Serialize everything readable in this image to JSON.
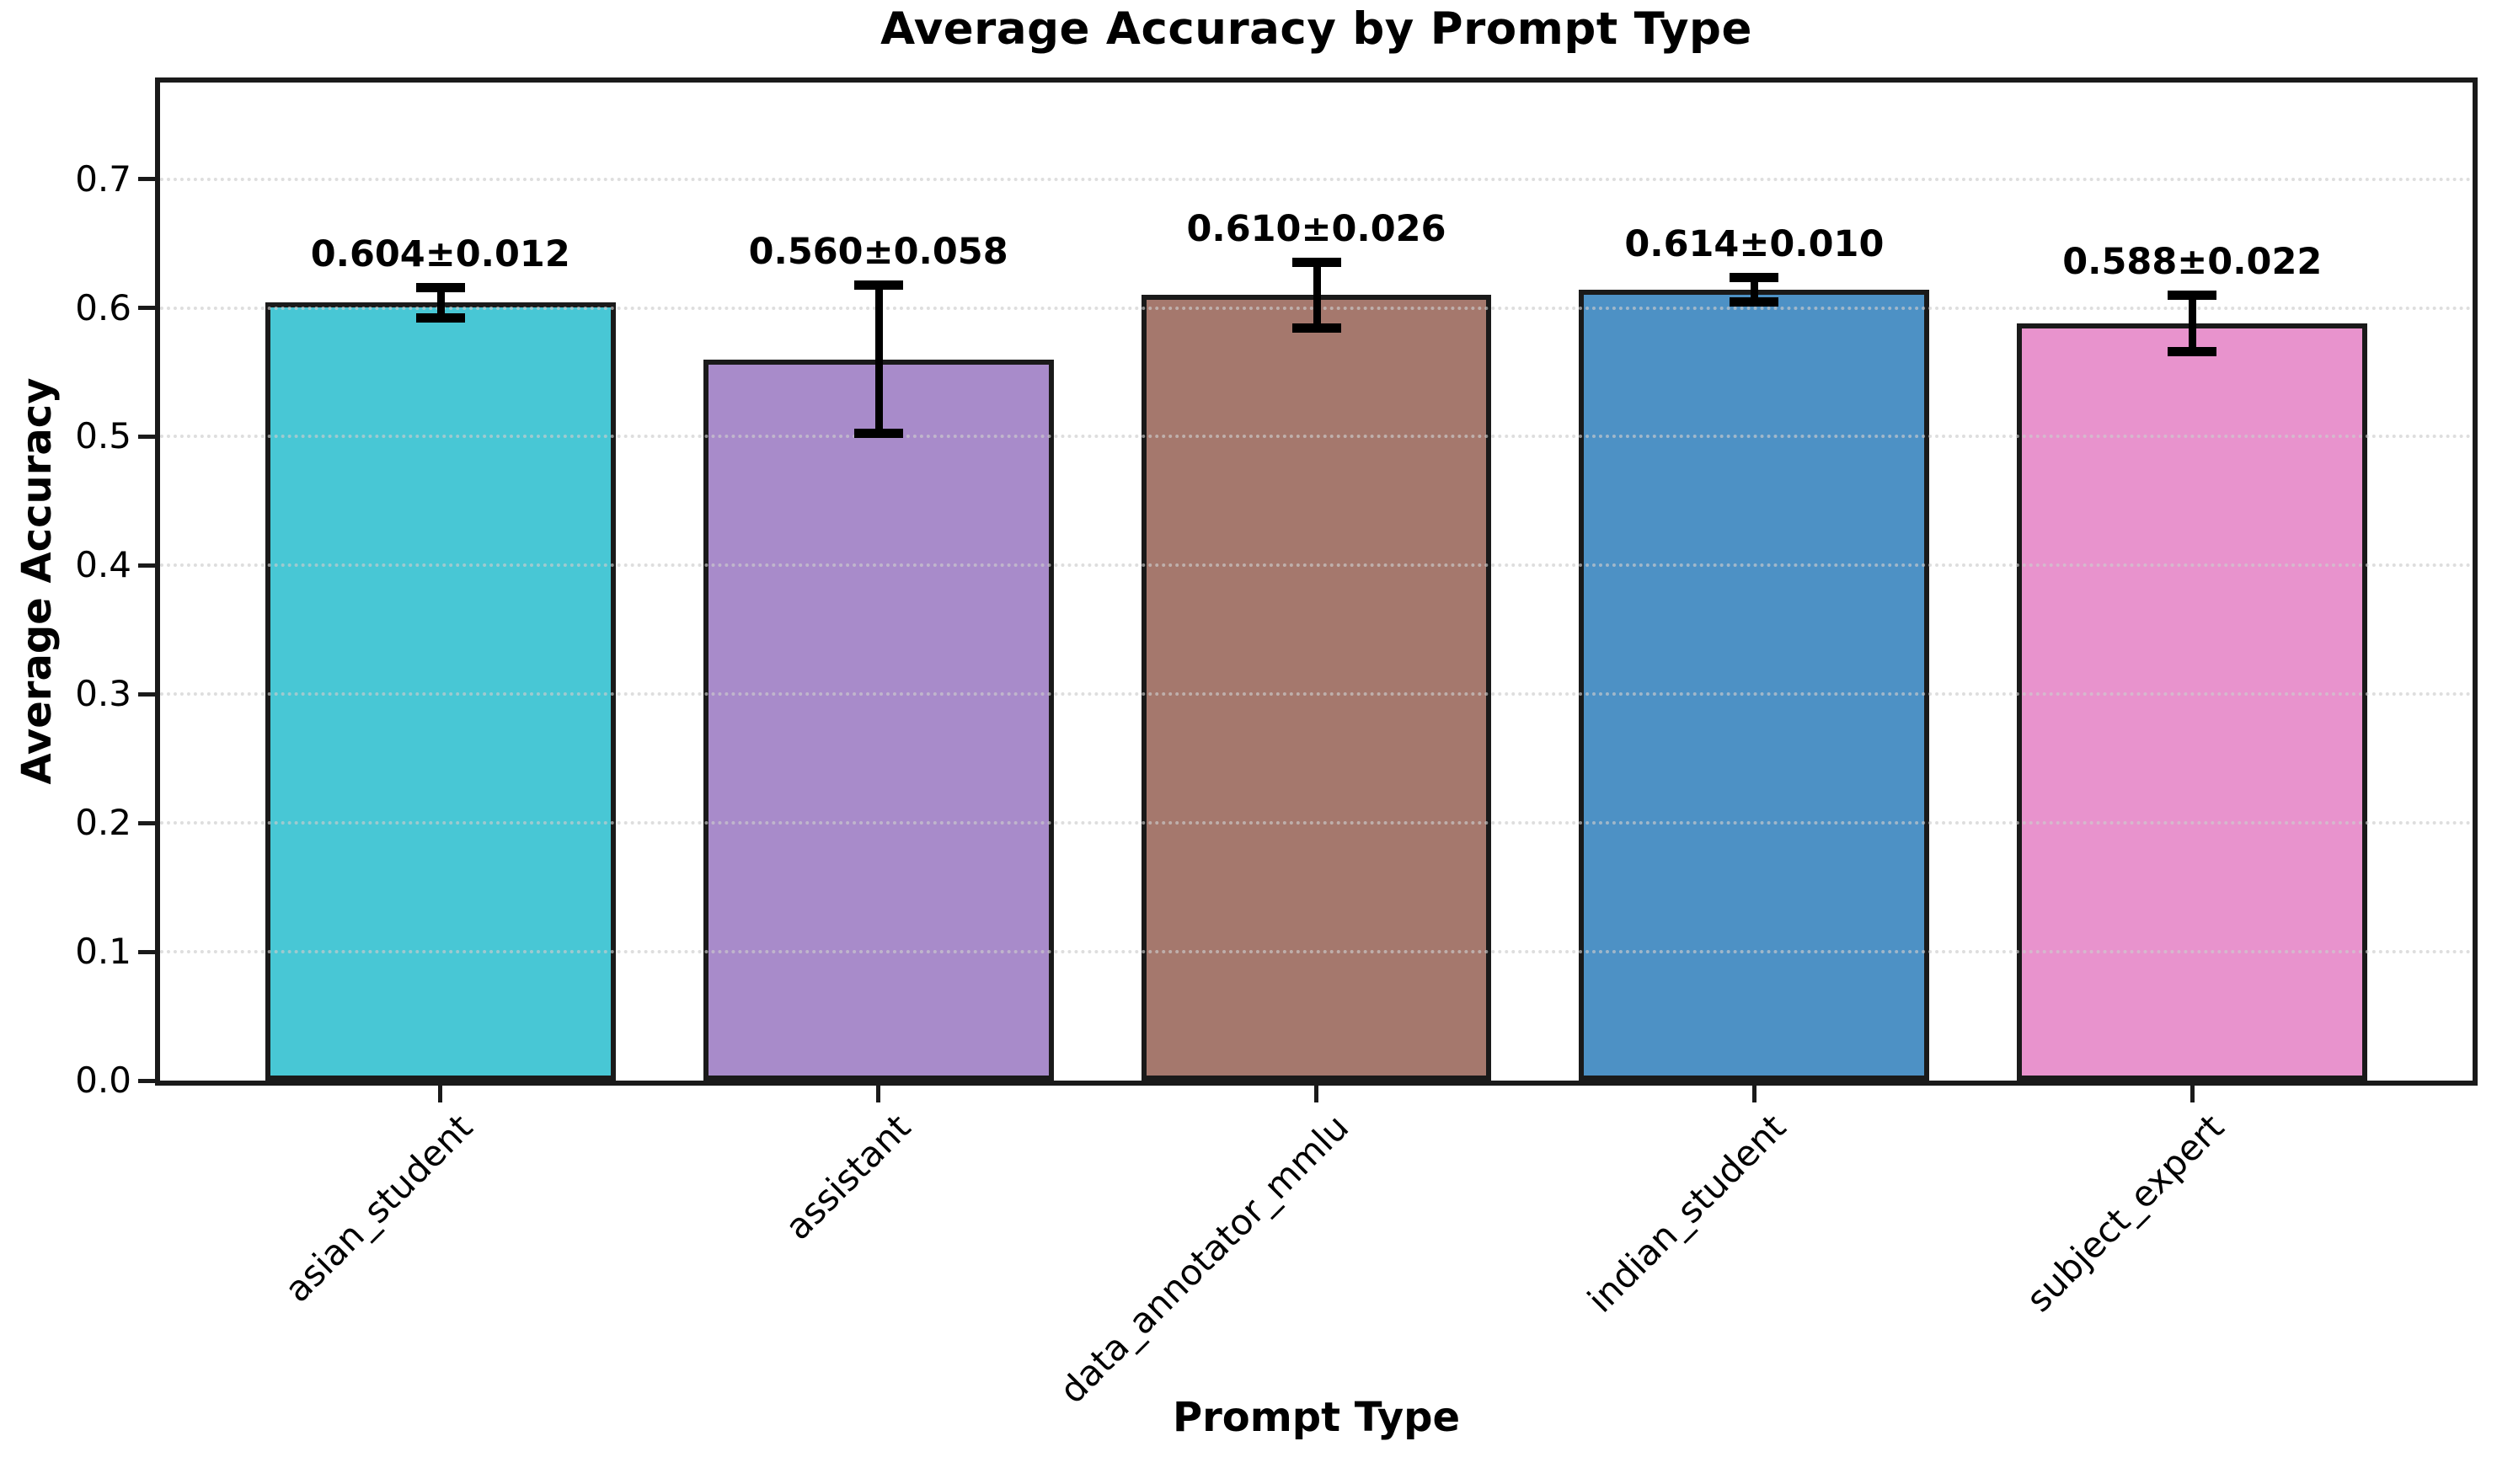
{
  "chart_data": {
    "type": "bar",
    "title": "Average Accuracy by Prompt Type",
    "xlabel": "Prompt Type",
    "ylabel": "Average Accuracy",
    "categories": [
      "asian_student",
      "assistant",
      "data_annotator_mmlu",
      "indian_student",
      "subject_expert"
    ],
    "values": [
      0.604,
      0.56,
      0.61,
      0.614,
      0.588
    ],
    "errors": [
      0.012,
      0.058,
      0.026,
      0.01,
      0.022
    ],
    "bar_labels": [
      "0.604±0.012",
      "0.560±0.058",
      "0.610±0.026",
      "0.614±0.010",
      "0.588±0.022"
    ],
    "bar_colors": [
      "#48C7D5",
      "#A88BCA",
      "#A5786D",
      "#4D91C5",
      "#E893CD"
    ],
    "bar_edge_color": "#1a1a1a",
    "error_bar_color": "#000000",
    "ylim": [
      0,
      0.775
    ],
    "yticks": [
      0.0,
      0.1,
      0.2,
      0.3,
      0.4,
      0.5,
      0.6,
      0.7
    ],
    "ytick_labels": [
      "0.0",
      "0.1",
      "0.2",
      "0.3",
      "0.4",
      "0.5",
      "0.6",
      "0.7"
    ],
    "xtick_rotation": 45,
    "grid": true,
    "grid_axis": "y",
    "legend": "none"
  }
}
